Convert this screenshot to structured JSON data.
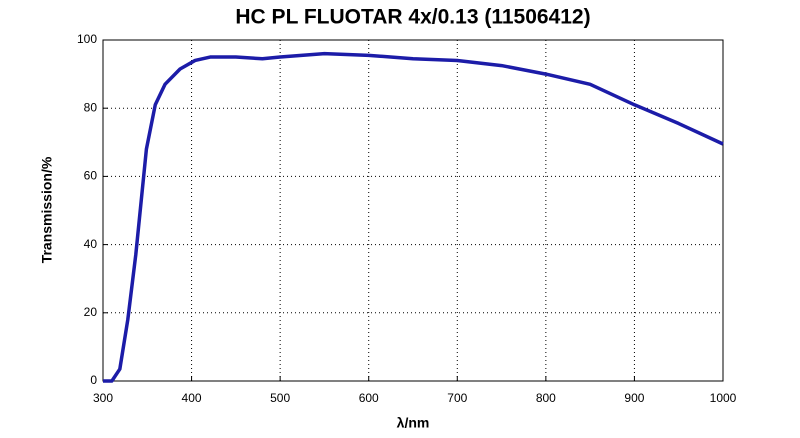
{
  "chart_data": {
    "type": "line",
    "title": "HC PL FLUOTAR 4x/0.13 (11506412)",
    "x_label": "λ/nm",
    "y_label": "Transmission/%",
    "x": [
      300,
      310,
      319,
      328,
      337,
      349,
      359,
      370,
      387,
      404,
      421,
      450,
      480,
      500,
      550,
      600,
      650,
      700,
      750,
      800,
      850,
      900,
      950,
      1000
    ],
    "series": [
      {
        "name": "Transmission",
        "color": "#1c1ca8",
        "values": [
          0,
          0,
          3.5,
          18,
          37,
          68,
          81,
          87,
          91.5,
          94,
          95,
          95,
          94.5,
          95,
          96,
          95.5,
          94.5,
          94,
          92.5,
          90,
          87,
          81,
          75.5,
          69.5
        ]
      }
    ],
    "xlim": [
      300,
      1000
    ],
    "xticks": [
      300,
      400,
      500,
      600,
      700,
      800,
      900,
      1000
    ],
    "ylim": [
      0,
      100
    ],
    "yticks": [
      0,
      20,
      40,
      60,
      80,
      100
    ],
    "grid": true
  }
}
